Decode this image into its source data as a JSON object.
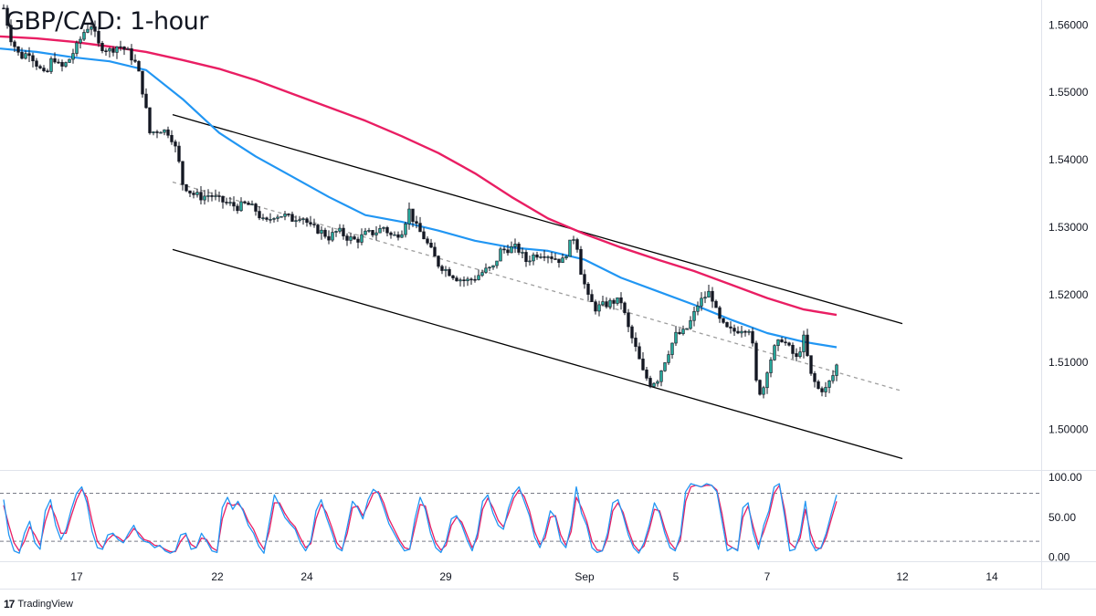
{
  "title": "GBP/CAD: 1-hour",
  "brand": "TradingView",
  "colors": {
    "bull": "#26a69a",
    "bear": "#131722",
    "sma_fast": "#2196f3",
    "sma_slow": "#e91e63",
    "channel": "#000000",
    "midline": "#9e9e9e",
    "stoch_k": "#2196f3",
    "stoch_d": "#e91e63"
  },
  "chart_data": [
    {
      "type": "line",
      "name": "price",
      "x_ticks": [
        {
          "label": "17",
          "t": 84
        },
        {
          "label": "22",
          "t": 238
        },
        {
          "label": "24",
          "t": 336
        },
        {
          "label": "29",
          "t": 488
        },
        {
          "label": "Sep",
          "t": 640
        },
        {
          "label": "5",
          "t": 740
        },
        {
          "label": "7",
          "t": 840
        },
        {
          "label": "12",
          "t": 988
        },
        {
          "label": "14",
          "t": 1086
        }
      ],
      "y_ticks": [
        "1.56000",
        "1.55000",
        "1.54000",
        "1.53000",
        "1.52000",
        "1.51000",
        "1.50000"
      ],
      "ylim": [
        1.494,
        1.5637
      ],
      "xlim": [
        0,
        1140
      ],
      "price_path": [
        [
          4,
          1.5625
        ],
        [
          12,
          1.558
        ],
        [
          22,
          1.5552
        ],
        [
          32,
          1.556
        ],
        [
          42,
          1.5538
        ],
        [
          50,
          1.5522
        ],
        [
          58,
          1.5555
        ],
        [
          66,
          1.5535
        ],
        [
          74,
          1.5545
        ],
        [
          84,
          1.5568
        ],
        [
          94,
          1.5595
        ],
        [
          100,
          1.56
        ],
        [
          108,
          1.557
        ],
        [
          120,
          1.5562
        ],
        [
          130,
          1.557
        ],
        [
          140,
          1.556
        ],
        [
          150,
          1.554
        ],
        [
          158,
          1.549
        ],
        [
          164,
          1.544
        ],
        [
          176,
          1.5445
        ],
        [
          186,
          1.544
        ],
        [
          194,
          1.541
        ],
        [
          200,
          1.5365
        ],
        [
          210,
          1.535
        ],
        [
          220,
          1.5345
        ],
        [
          230,
          1.5348
        ],
        [
          240,
          1.534
        ],
        [
          250,
          1.5335
        ],
        [
          260,
          1.533
        ],
        [
          270,
          1.5335
        ],
        [
          280,
          1.5325
        ],
        [
          290,
          1.5305
        ],
        [
          300,
          1.5318
        ],
        [
          310,
          1.5318
        ],
        [
          320,
          1.5312
        ],
        [
          330,
          1.5318
        ],
        [
          340,
          1.53
        ],
        [
          350,
          1.5295
        ],
        [
          360,
          1.5285
        ],
        [
          370,
          1.5295
        ],
        [
          380,
          1.5285
        ],
        [
          390,
          1.528
        ],
        [
          400,
          1.529
        ],
        [
          410,
          1.5292
        ],
        [
          420,
          1.53
        ],
        [
          430,
          1.5285
        ],
        [
          440,
          1.5295
        ],
        [
          448,
          1.5325
        ],
        [
          456,
          1.53
        ],
        [
          464,
          1.5285
        ],
        [
          472,
          1.5265
        ],
        [
          480,
          1.5245
        ],
        [
          490,
          1.5235
        ],
        [
          500,
          1.5225
        ],
        [
          510,
          1.522
        ],
        [
          520,
          1.5225
        ],
        [
          530,
          1.5235
        ],
        [
          540,
          1.524
        ],
        [
          548,
          1.5265
        ],
        [
          556,
          1.5268
        ],
        [
          566,
          1.527
        ],
        [
          576,
          1.525
        ],
        [
          586,
          1.526
        ],
        [
          596,
          1.5262
        ],
        [
          606,
          1.5255
        ],
        [
          616,
          1.525
        ],
        [
          624,
          1.5275
        ],
        [
          630,
          1.529
        ],
        [
          636,
          1.5235
        ],
        [
          644,
          1.5195
        ],
        [
          652,
          1.518
        ],
        [
          662,
          1.5185
        ],
        [
          672,
          1.519
        ],
        [
          680,
          1.519
        ],
        [
          688,
          1.515
        ],
        [
          696,
          1.512
        ],
        [
          704,
          1.5085
        ],
        [
          712,
          1.5068
        ],
        [
          720,
          1.5075
        ],
        [
          730,
          1.511
        ],
        [
          740,
          1.514
        ],
        [
          750,
          1.5145
        ],
        [
          758,
          1.5165
        ],
        [
          764,
          1.5185
        ],
        [
          770,
          1.5195
        ],
        [
          778,
          1.5205
        ],
        [
          786,
          1.5165
        ],
        [
          794,
          1.515
        ],
        [
          802,
          1.5145
        ],
        [
          812,
          1.515
        ],
        [
          822,
          1.515
        ],
        [
          828,
          1.507
        ],
        [
          834,
          1.505
        ],
        [
          840,
          1.509
        ],
        [
          848,
          1.512
        ],
        [
          856,
          1.5135
        ],
        [
          864,
          1.512
        ],
        [
          872,
          1.5105
        ],
        [
          880,
          1.5135
        ],
        [
          888,
          1.508
        ],
        [
          896,
          1.506
        ],
        [
          904,
          1.506
        ],
        [
          912,
          1.508
        ],
        [
          916,
          1.5095
        ]
      ],
      "sma_fast": [
        [
          0,
          1.5565
        ],
        [
          40,
          1.556
        ],
        [
          80,
          1.5552
        ],
        [
          120,
          1.5546
        ],
        [
          160,
          1.5533
        ],
        [
          200,
          1.549
        ],
        [
          240,
          1.544
        ],
        [
          280,
          1.5405
        ],
        [
          320,
          1.5375
        ],
        [
          360,
          1.5345
        ],
        [
          400,
          1.5318
        ],
        [
          440,
          1.5308
        ],
        [
          480,
          1.5295
        ],
        [
          520,
          1.528
        ],
        [
          560,
          1.527
        ],
        [
          600,
          1.5265
        ],
        [
          640,
          1.5252
        ],
        [
          680,
          1.5225
        ],
        [
          720,
          1.5205
        ],
        [
          760,
          1.5185
        ],
        [
          800,
          1.5163
        ],
        [
          840,
          1.5143
        ],
        [
          880,
          1.513
        ],
        [
          916,
          1.5122
        ]
      ],
      "sma_slow": [
        [
          0,
          1.5583
        ],
        [
          40,
          1.558
        ],
        [
          80,
          1.5575
        ],
        [
          120,
          1.5568
        ],
        [
          160,
          1.556
        ],
        [
          200,
          1.5548
        ],
        [
          240,
          1.5535
        ],
        [
          280,
          1.5518
        ],
        [
          320,
          1.5498
        ],
        [
          360,
          1.5478
        ],
        [
          400,
          1.5458
        ],
        [
          440,
          1.5435
        ],
        [
          480,
          1.541
        ],
        [
          520,
          1.538
        ],
        [
          560,
          1.5345
        ],
        [
          600,
          1.5313
        ],
        [
          640,
          1.529
        ],
        [
          680,
          1.527
        ],
        [
          720,
          1.5252
        ],
        [
          760,
          1.5235
        ],
        [
          800,
          1.5215
        ],
        [
          840,
          1.5195
        ],
        [
          880,
          1.5178
        ],
        [
          916,
          1.517
        ]
      ],
      "channel_upper": [
        [
          189,
          1.5467
        ],
        [
          988,
          1.5157
        ]
      ],
      "channel_lower": [
        [
          189,
          1.5267
        ],
        [
          988,
          1.4957
        ]
      ],
      "channel_mid": [
        [
          189,
          1.5367
        ],
        [
          988,
          1.5057
        ]
      ]
    },
    {
      "type": "line",
      "name": "stochastic",
      "y_ticks": [
        "100.00",
        "50.00",
        "0.00"
      ],
      "ylim": [
        -5,
        108
      ],
      "levels": [
        80,
        20
      ],
      "k_values": [
        72,
        28,
        8,
        5,
        30,
        45,
        18,
        10,
        58,
        72,
        40,
        22,
        35,
        60,
        80,
        88,
        68,
        32,
        12,
        10,
        28,
        30,
        22,
        18,
        30,
        40,
        26,
        20,
        18,
        12,
        15,
        8,
        5,
        8,
        28,
        30,
        10,
        12,
        30,
        20,
        8,
        6,
        62,
        75,
        60,
        70,
        58,
        40,
        30,
        14,
        5,
        42,
        78,
        65,
        50,
        42,
        35,
        18,
        8,
        20,
        58,
        72,
        50,
        32,
        12,
        8,
        38,
        70,
        62,
        48,
        72,
        85,
        80,
        62,
        42,
        30,
        18,
        8,
        10,
        48,
        75,
        60,
        30,
        12,
        6,
        20,
        48,
        52,
        40,
        22,
        8,
        30,
        70,
        78,
        55,
        40,
        35,
        62,
        80,
        88,
        70,
        52,
        25,
        12,
        30,
        58,
        50,
        20,
        12,
        40,
        88,
        55,
        40,
        12,
        6,
        8,
        30,
        68,
        72,
        52,
        28,
        12,
        5,
        18,
        40,
        68,
        55,
        30,
        12,
        8,
        28,
        82,
        92,
        90,
        88,
        92,
        90,
        82,
        45,
        8,
        12,
        8,
        62,
        68,
        30,
        10,
        40,
        58,
        88,
        92,
        52,
        8,
        10,
        30,
        70,
        20,
        8,
        12,
        30,
        55,
        78
      ],
      "d_values": [
        65,
        40,
        18,
        8,
        20,
        38,
        28,
        15,
        45,
        65,
        50,
        30,
        30,
        52,
        72,
        85,
        75,
        45,
        20,
        12,
        22,
        28,
        25,
        20,
        26,
        36,
        30,
        22,
        20,
        15,
        14,
        10,
        7,
        7,
        20,
        28,
        16,
        12,
        24,
        22,
        12,
        8,
        48,
        68,
        65,
        67,
        60,
        45,
        35,
        20,
        10,
        32,
        68,
        68,
        55,
        45,
        38,
        24,
        12,
        17,
        48,
        66,
        56,
        38,
        18,
        10,
        30,
        62,
        64,
        52,
        65,
        80,
        82,
        68,
        48,
        35,
        22,
        12,
        10,
        38,
        66,
        64,
        38,
        18,
        9,
        15,
        40,
        50,
        44,
        28,
        12,
        24,
        60,
        74,
        62,
        46,
        38,
        55,
        74,
        84,
        76,
        58,
        32,
        16,
        24,
        50,
        52,
        28,
        15,
        32,
        75,
        62,
        45,
        20,
        9,
        8,
        24,
        58,
        68,
        56,
        34,
        16,
        8,
        14,
        34,
        60,
        58,
        36,
        18,
        10,
        22,
        70,
        88,
        90,
        88,
        90,
        90,
        84,
        54,
        16,
        12,
        9,
        50,
        64,
        38,
        16,
        32,
        52,
        80,
        90,
        60,
        18,
        12,
        24,
        60,
        30,
        12,
        11,
        25,
        48,
        70
      ]
    }
  ]
}
